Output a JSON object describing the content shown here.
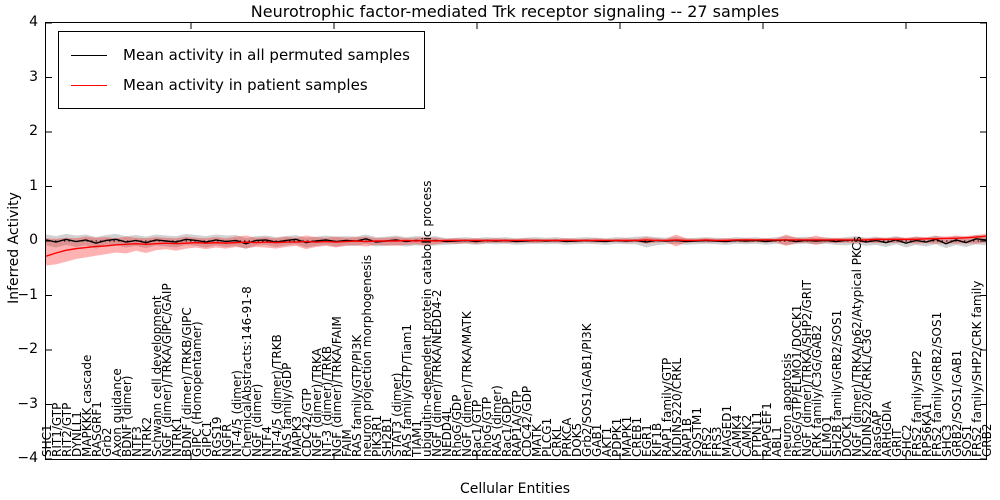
{
  "chart_data": {
    "type": "line",
    "title": "Neurotrophic factor-mediated Trk receptor signaling -- 27 samples",
    "xlabel": "Cellular Entities",
    "ylabel": "Inferred Activity",
    "ylim": [
      -4,
      4
    ],
    "y_ticks": [
      4,
      3,
      2,
      1,
      0,
      -1,
      -2,
      -3,
      -4
    ],
    "grid": false,
    "legend_position": "upper left",
    "zero_line": {
      "style": "dotted",
      "color": "#000000",
      "y": 0
    },
    "legend": [
      {
        "label": "Mean activity in all permuted samples",
        "color": "#000000"
      },
      {
        "label": "Mean activity in patient samples",
        "color": "#ff0000"
      }
    ],
    "categories": [
      "SHC1",
      "RIT1/GTP",
      "RIT2/GTP",
      "DYNLL1",
      "MAPKKK cascade",
      "RASGRF1",
      "Grb2",
      "Axon guidance",
      "BDNF (dimer)",
      "NTF3",
      "NTRK2",
      "Schwann cell development",
      "NGF (dimer)/TRKA/GIPC/GAIP",
      "NTRK1",
      "BDNF (dimer)/TRKB/GIPC",
      "GIPC (Homopentamer)",
      "GIPC1",
      "RGS19",
      "NGFR",
      "NT-4/5 (dimer)",
      "ChemicalAbstracts:146-91-8",
      "NGF (dimer)",
      "NTF4",
      "NT-4/5 (dimer)/TRKB",
      "RAS family/GDP",
      "MAPK3",
      "CDC42/GTP",
      "NGF (dimer)/TRKA",
      "NT-3 (dimer)/TRKB",
      "NGF (dimer)/TRKA/FAIM",
      "FAIM",
      "RAS family/GTP/PI3K",
      "neuron projection morphogenesis",
      "PIK3R1",
      "SH2B1",
      "STAT3 (dimer)",
      "RAS family/GTP/Tiam1",
      "TIAM1",
      "ubiquitin-dependent protein catabolic process",
      "NGF (dimer)/TRKA/NEDD4-2",
      "NEDD4L",
      "RhoG/GDP",
      "NGF (dimer)/TRKA/MATK",
      "Rac1/GTP",
      "RhoG/GTP",
      "RAS (dimer)",
      "Rac1/GDP",
      "RAP1A/GTP",
      "CDC42/GDP",
      "MATK",
      "PLCG1",
      "CRKL",
      "PRKCA",
      "DOK5",
      "Grb2/SOS1/GAB1/PI3K",
      "GAB1",
      "AKT1",
      "PDPK1",
      "MAPK1",
      "CREB1",
      "EGR1",
      "KIF1B",
      "RAP1 family/GTP",
      "KIDINS220/CRKL",
      "RAP1B",
      "SQSTM1",
      "FRS2",
      "FRS3",
      "MAGED1",
      "CAMK4",
      "CAMK2",
      "PTPN11",
      "RAPGEF1",
      "ABL1",
      "neuron apoptosis",
      "RhoG/GTP/ELMO1/DOCK1",
      "NGF (dimer)/TRKA/SHP2/GRIT",
      "CRK family/C3G/GAB2",
      "ELMO1",
      "SH2B family/GRB2/SOS1",
      "DOCK1",
      "NGF (dimer)/TRKA/p62/Atypical PKCs",
      "KIDINS220/CRKL/C3G",
      "RasGAP",
      "ARHGDIA",
      "GRIT",
      "SHC2",
      "FRS2 family/SHP2",
      "RPS6KA1",
      "FRS2 family/GRB2/SOS1",
      "SHC3",
      "GRB2/SOS1/GAB1",
      "SOS1",
      "FRS2 family/SHP2/CRK family",
      "GRB2"
    ],
    "series": [
      {
        "name": "Mean activity in all permuted samples",
        "color": "#000000",
        "band_color": "rgba(0,0,0,0.18)",
        "values": [
          0.02,
          -0.02,
          0.03,
          -0.01,
          0.02,
          -0.04,
          0.01,
          0.03,
          -0.02,
          0.01,
          -0.03,
          0.02,
          0.0,
          -0.02,
          0.03,
          0.01,
          -0.02,
          0.02,
          -0.01,
          0.01,
          -0.05,
          0.01,
          0.02,
          -0.02,
          0.01,
          0.03,
          -0.03,
          0.0,
          0.02,
          -0.01,
          0.01,
          0.0,
          0.04,
          -0.02,
          0.0,
          0.02,
          -0.01,
          0.01,
          0.0,
          0.01,
          -0.01,
          0.0,
          0.01,
          -0.01,
          0.01,
          0.0,
          0.01,
          -0.01,
          0.0,
          0.01,
          0.0,
          0.01,
          -0.01,
          0.0,
          0.01,
          0.0,
          -0.01,
          0.01,
          0.0,
          0.01,
          -0.02,
          0.01,
          0.0,
          0.01,
          -0.01,
          0.0,
          0.01,
          0.0,
          -0.01,
          0.01,
          0.0,
          0.01,
          -0.01,
          0.01,
          0.02,
          -0.01,
          0.01,
          0.0,
          0.01,
          -0.01,
          0.01,
          0.02,
          -0.02,
          0.01,
          -0.03,
          0.02,
          -0.04,
          0.01,
          -0.02,
          0.03,
          -0.05,
          0.02,
          -0.03,
          0.04,
          0.02
        ],
        "band_upper": [
          0.12,
          0.09,
          0.13,
          0.1,
          0.12,
          0.07,
          0.11,
          0.13,
          0.09,
          0.11,
          0.08,
          0.12,
          0.1,
          0.09,
          0.13,
          0.11,
          0.09,
          0.12,
          0.1,
          0.11,
          0.05,
          0.09,
          0.1,
          0.07,
          0.09,
          0.11,
          0.06,
          0.08,
          0.1,
          0.08,
          0.09,
          0.08,
          0.12,
          0.07,
          0.08,
          0.1,
          0.07,
          0.09,
          0.08,
          0.09,
          0.05,
          0.06,
          0.07,
          0.05,
          0.07,
          0.06,
          0.07,
          0.05,
          0.06,
          0.07,
          0.06,
          0.07,
          0.05,
          0.06,
          0.07,
          0.06,
          0.05,
          0.07,
          0.06,
          0.08,
          0.09,
          0.07,
          0.06,
          0.07,
          0.05,
          0.06,
          0.07,
          0.06,
          0.05,
          0.07,
          0.06,
          0.07,
          0.05,
          0.07,
          0.09,
          0.07,
          0.08,
          0.06,
          0.07,
          0.05,
          0.07,
          0.09,
          0.06,
          0.08,
          0.06,
          0.09,
          0.05,
          0.08,
          0.06,
          0.1,
          0.05,
          0.09,
          0.06,
          0.11,
          0.09
        ],
        "band_lower": [
          -0.08,
          -0.12,
          -0.07,
          -0.11,
          -0.08,
          -0.14,
          -0.09,
          -0.07,
          -0.12,
          -0.09,
          -0.13,
          -0.08,
          -0.1,
          -0.12,
          -0.07,
          -0.09,
          -0.12,
          -0.08,
          -0.11,
          -0.09,
          -0.15,
          -0.08,
          -0.07,
          -0.11,
          -0.08,
          -0.06,
          -0.12,
          -0.09,
          -0.07,
          -0.1,
          -0.08,
          -0.09,
          -0.05,
          -0.1,
          -0.09,
          -0.07,
          -0.1,
          -0.08,
          -0.09,
          -0.08,
          -0.07,
          -0.06,
          -0.05,
          -0.07,
          -0.05,
          -0.06,
          -0.05,
          -0.07,
          -0.06,
          -0.05,
          -0.06,
          -0.05,
          -0.07,
          -0.06,
          -0.05,
          -0.06,
          -0.07,
          -0.05,
          -0.06,
          -0.06,
          -0.12,
          -0.08,
          -0.06,
          -0.05,
          -0.07,
          -0.06,
          -0.05,
          -0.06,
          -0.07,
          -0.05,
          -0.06,
          -0.05,
          -0.07,
          -0.05,
          -0.07,
          -0.06,
          -0.05,
          -0.06,
          -0.05,
          -0.07,
          -0.08,
          -0.06,
          -0.09,
          -0.07,
          -0.11,
          -0.06,
          -0.12,
          -0.07,
          -0.1,
          -0.06,
          -0.13,
          -0.07,
          -0.11,
          -0.06,
          -0.08
        ]
      },
      {
        "name": "Mean activity in patient samples",
        "color": "#ff0000",
        "band_color": "rgba(255,0,0,0.30)",
        "values": [
          -0.28,
          -0.22,
          -0.17,
          -0.14,
          -0.12,
          -0.1,
          -0.09,
          -0.07,
          -0.06,
          -0.05,
          -0.06,
          -0.05,
          -0.04,
          -0.05,
          -0.04,
          -0.03,
          -0.04,
          -0.03,
          -0.04,
          -0.03,
          -0.02,
          -0.03,
          -0.02,
          -0.03,
          -0.02,
          -0.02,
          -0.01,
          -0.02,
          -0.01,
          -0.02,
          -0.01,
          0.0,
          -0.01,
          0.0,
          0.0,
          0.0,
          0.01,
          0.0,
          0.01,
          0.0,
          0.01,
          0.01,
          0.01,
          0.01,
          0.01,
          0.01,
          0.01,
          0.01,
          0.01,
          0.01,
          0.01,
          0.01,
          0.01,
          0.01,
          0.01,
          0.01,
          0.01,
          0.01,
          0.01,
          0.01,
          0.02,
          0.01,
          0.01,
          0.02,
          0.01,
          0.01,
          0.02,
          0.01,
          0.01,
          0.02,
          0.02,
          0.02,
          0.02,
          0.02,
          0.02,
          0.02,
          0.02,
          0.02,
          0.02,
          0.02,
          0.02,
          0.02,
          0.02,
          0.03,
          0.03,
          0.03,
          0.03,
          0.03,
          0.04,
          0.04,
          0.05,
          0.05,
          0.06,
          0.07,
          0.09
        ],
        "band_upper": [
          0.05,
          0.04,
          0.06,
          0.05,
          0.08,
          0.06,
          0.07,
          0.05,
          0.08,
          0.06,
          0.05,
          0.07,
          0.06,
          0.05,
          0.08,
          0.06,
          0.05,
          0.07,
          0.05,
          0.08,
          0.1,
          0.06,
          0.07,
          0.05,
          0.08,
          0.06,
          0.1,
          0.07,
          0.06,
          0.08,
          0.06,
          0.07,
          0.08,
          0.05,
          0.06,
          0.07,
          0.05,
          0.06,
          0.07,
          0.06,
          0.04,
          0.05,
          0.04,
          0.05,
          0.04,
          0.05,
          0.04,
          0.04,
          0.05,
          0.04,
          0.04,
          0.04,
          0.05,
          0.04,
          0.04,
          0.05,
          0.04,
          0.04,
          0.05,
          0.04,
          0.07,
          0.05,
          0.04,
          0.12,
          0.05,
          0.04,
          0.05,
          0.04,
          0.05,
          0.04,
          0.05,
          0.04,
          0.05,
          0.04,
          0.12,
          0.06,
          0.05,
          0.1,
          0.05,
          0.06,
          0.05,
          0.06,
          0.05,
          0.06,
          0.05,
          0.07,
          0.06,
          0.08,
          0.07,
          0.09,
          0.08,
          0.1,
          0.09,
          0.11,
          0.13
        ],
        "band_lower": [
          -0.45,
          -0.43,
          -0.38,
          -0.33,
          -0.3,
          -0.27,
          -0.24,
          -0.21,
          -0.23,
          -0.18,
          -0.22,
          -0.17,
          -0.15,
          -0.18,
          -0.14,
          -0.12,
          -0.15,
          -0.12,
          -0.14,
          -0.11,
          -0.13,
          -0.11,
          -0.12,
          -0.14,
          -0.11,
          -0.09,
          -0.15,
          -0.11,
          -0.09,
          -0.12,
          -0.09,
          -0.08,
          -0.1,
          -0.07,
          -0.08,
          -0.09,
          -0.07,
          -0.06,
          -0.08,
          -0.06,
          -0.04,
          -0.05,
          -0.04,
          -0.05,
          -0.04,
          -0.03,
          -0.04,
          -0.03,
          -0.03,
          -0.04,
          -0.02,
          -0.03,
          -0.02,
          -0.03,
          -0.02,
          -0.03,
          -0.02,
          -0.02,
          -0.03,
          -0.02,
          -0.05,
          -0.03,
          -0.02,
          -0.1,
          -0.03,
          -0.02,
          -0.03,
          -0.02,
          -0.03,
          -0.02,
          -0.03,
          -0.02,
          -0.03,
          -0.02,
          -0.09,
          -0.04,
          -0.03,
          -0.07,
          -0.03,
          -0.04,
          -0.03,
          -0.04,
          -0.03,
          -0.04,
          -0.03,
          -0.04,
          -0.03,
          -0.05,
          -0.04,
          -0.05,
          -0.04,
          -0.05,
          -0.04,
          -0.05,
          -0.03
        ]
      }
    ]
  }
}
